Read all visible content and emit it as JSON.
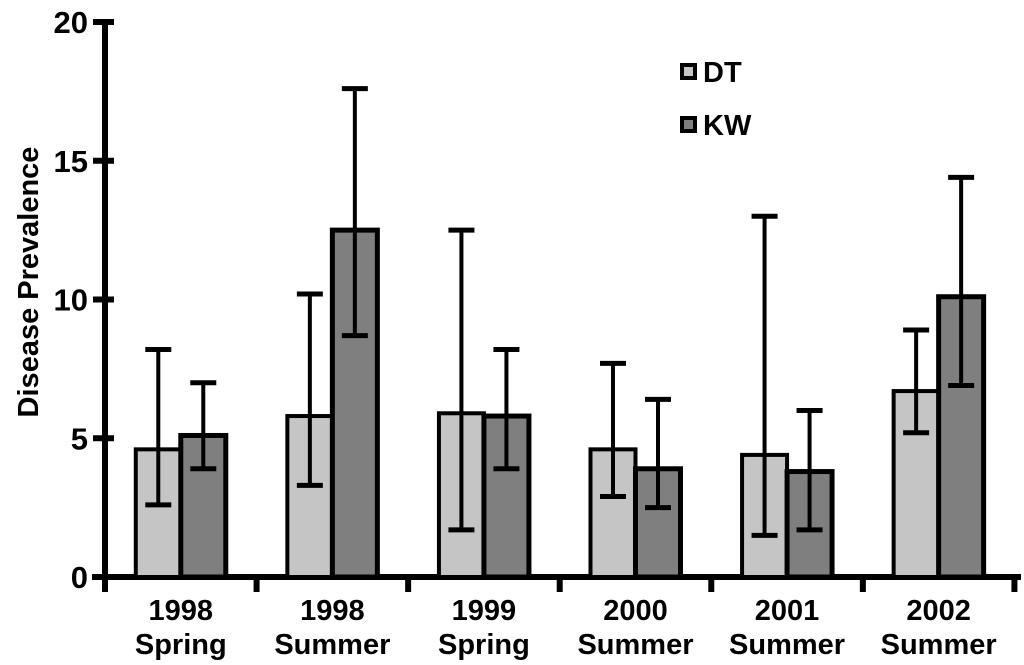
{
  "figure": {
    "background": "#ffffff",
    "axis_color": "#000000"
  },
  "legend": {
    "items": [
      {
        "label": "DT",
        "swatch_color": "#c5c5c5"
      },
      {
        "label": "KW",
        "swatch_color": "#7f7f7f"
      }
    ]
  },
  "chart_data": {
    "type": "bar",
    "title": "",
    "xlabel": "",
    "ylabel": "Disease Prevalence",
    "ylim": [
      0,
      20
    ],
    "yticks": [
      0,
      5,
      10,
      15,
      20
    ],
    "grid": false,
    "legend_position": "top-right",
    "error_bars": true,
    "categories": [
      {
        "year": "1998",
        "season": "Spring"
      },
      {
        "year": "1998",
        "season": "Summer"
      },
      {
        "year": "1999",
        "season": "Spring"
      },
      {
        "year": "2000",
        "season": "Summer"
      },
      {
        "year": "2001",
        "season": "Summer"
      },
      {
        "year": "2002",
        "season": "Summer"
      }
    ],
    "series": [
      {
        "name": "DT",
        "color": "#c5c5c5",
        "values": [
          4.6,
          5.8,
          5.9,
          4.6,
          4.4,
          6.7
        ],
        "error_low": [
          2.6,
          3.3,
          1.7,
          2.9,
          1.5,
          5.2
        ],
        "error_high": [
          8.2,
          10.2,
          12.5,
          7.7,
          13.0,
          8.9
        ]
      },
      {
        "name": "KW",
        "color": "#7f7f7f",
        "values": [
          5.1,
          12.5,
          5.8,
          3.9,
          3.8,
          10.1
        ],
        "error_low": [
          3.9,
          8.7,
          3.9,
          2.5,
          1.7,
          6.9
        ],
        "error_high": [
          7.0,
          17.6,
          8.2,
          6.4,
          6.0,
          14.4
        ]
      }
    ]
  }
}
